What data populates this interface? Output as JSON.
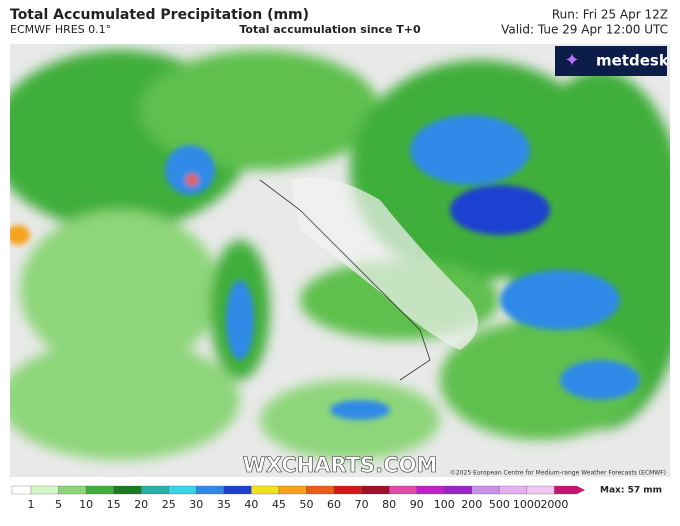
{
  "header": {
    "title": "Total Accumulated Precipitation (mm)",
    "model": "ECMWF HRES 0.1°",
    "subtitle": "Total accumulation since T+0",
    "run": "Run: Fri 25 Apr 12Z",
    "valid": "Valid: Tue 29 Apr 12:00 UTC"
  },
  "logo": "metdesk",
  "watermark": "WXCHARTS.COM",
  "copyright": "©2025 European Centre for Medium-range Weather Forecasts (ECMWF)",
  "colorbar": {
    "ticks": [
      1,
      5,
      10,
      15,
      20,
      25,
      30,
      35,
      40,
      45,
      50,
      60,
      70,
      80,
      90,
      100,
      200,
      500,
      1000,
      2000
    ],
    "colors": [
      "#ffffff",
      "#d6f5c8",
      "#8ed67a",
      "#3fae3a",
      "#1b7c25",
      "#26b2a6",
      "#38d4e8",
      "#2f8ae6",
      "#1f3fd0",
      "#f2e21c",
      "#f5a21a",
      "#ec5b17",
      "#d41818",
      "#a10f2a",
      "#e04aa8",
      "#c020c8",
      "#9a24c6",
      "#c890e8",
      "#e6b0f0",
      "#f0c8f4",
      "#c8146e"
    ],
    "max": "Max: 57 mm"
  }
}
